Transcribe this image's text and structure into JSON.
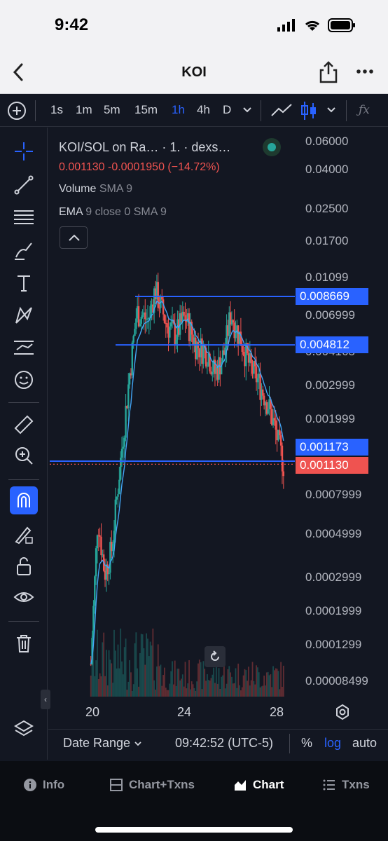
{
  "status": {
    "time": "9:42"
  },
  "nav": {
    "title": "KOI"
  },
  "toolbar": {
    "intervals": [
      "1s",
      "1m",
      "5m",
      "15m",
      "1h",
      "4h",
      "D"
    ],
    "active_interval": "1h"
  },
  "legend": {
    "title": "KOI/SOL on Ra… · 1. · dexs…",
    "price": "0.001130",
    "change": "-0.0001950",
    "change_pct": "(−14.72%)",
    "volume_label": "Volume",
    "volume_ind": "SMA 9",
    "ema_label": "EMA",
    "ema_params": "9 close 0 SMA 9"
  },
  "y_axis_labels": [
    "0.06000",
    "0.04000",
    "0.02500",
    "0.01700",
    "0.01099",
    "0.006999",
    "0.004165",
    "0.002999",
    "0.001999",
    "0.0007999",
    "0.0004999",
    "0.0002999",
    "0.0001999",
    "0.0001299",
    "0.00008499"
  ],
  "price_tags": {
    "level_high": "0.008669",
    "level_mid": "0.004812",
    "level_low": "0.001173",
    "last_price": "0.001130"
  },
  "x_axis_labels": [
    "20",
    "24",
    "28"
  ],
  "footer": {
    "date_range": "Date Range",
    "clock": "09:42:52 (UTC-5)",
    "percent": "%",
    "log": "log",
    "auto": "auto"
  },
  "tabs": [
    {
      "label": "Info",
      "icon": "info-icon"
    },
    {
      "label": "Chart+Txns",
      "icon": "split-view-icon"
    },
    {
      "label": "Chart",
      "icon": "area-chart-icon"
    },
    {
      "label": "Txns",
      "icon": "list-icon"
    }
  ],
  "active_tab": "Chart",
  "colors": {
    "background": "#131722",
    "accent": "#2962ff",
    "up": "#26a69a",
    "down": "#ef5350",
    "ema": "#42a5f5"
  },
  "chart_data": {
    "type": "candlestick",
    "scale": "log",
    "horizontal_levels": [
      0.008669,
      0.004812,
      0.001173
    ],
    "last_price": 0.00113,
    "x_ticks": [
      "20",
      "24",
      "28"
    ],
    "close_series_approx": [
      {
        "x": "19.9",
        "y": 0.0001
      },
      {
        "x": "20.2",
        "y": 0.0006
      },
      {
        "x": "20.5",
        "y": 0.0003
      },
      {
        "x": "20.8",
        "y": 0.0004
      },
      {
        "x": "21.2",
        "y": 0.0012
      },
      {
        "x": "21.6",
        "y": 0.0035
      },
      {
        "x": "21.9",
        "y": 0.0072
      },
      {
        "x": "22.4",
        "y": 0.0065
      },
      {
        "x": "22.7",
        "y": 0.0095
      },
      {
        "x": "23.2",
        "y": 0.0062
      },
      {
        "x": "23.6",
        "y": 0.0055
      },
      {
        "x": "24.0",
        "y": 0.0068
      },
      {
        "x": "24.5",
        "y": 0.0048
      },
      {
        "x": "25.0",
        "y": 0.0044
      },
      {
        "x": "25.3",
        "y": 0.0034
      },
      {
        "x": "25.7",
        "y": 0.0043
      },
      {
        "x": "26.0",
        "y": 0.0071
      },
      {
        "x": "26.4",
        "y": 0.0053
      },
      {
        "x": "26.8",
        "y": 0.0038
      },
      {
        "x": "27.2",
        "y": 0.0031
      },
      {
        "x": "27.6",
        "y": 0.0024
      },
      {
        "x": "27.9",
        "y": 0.0018
      },
      {
        "x": "28.3",
        "y": 0.00113
      }
    ]
  }
}
